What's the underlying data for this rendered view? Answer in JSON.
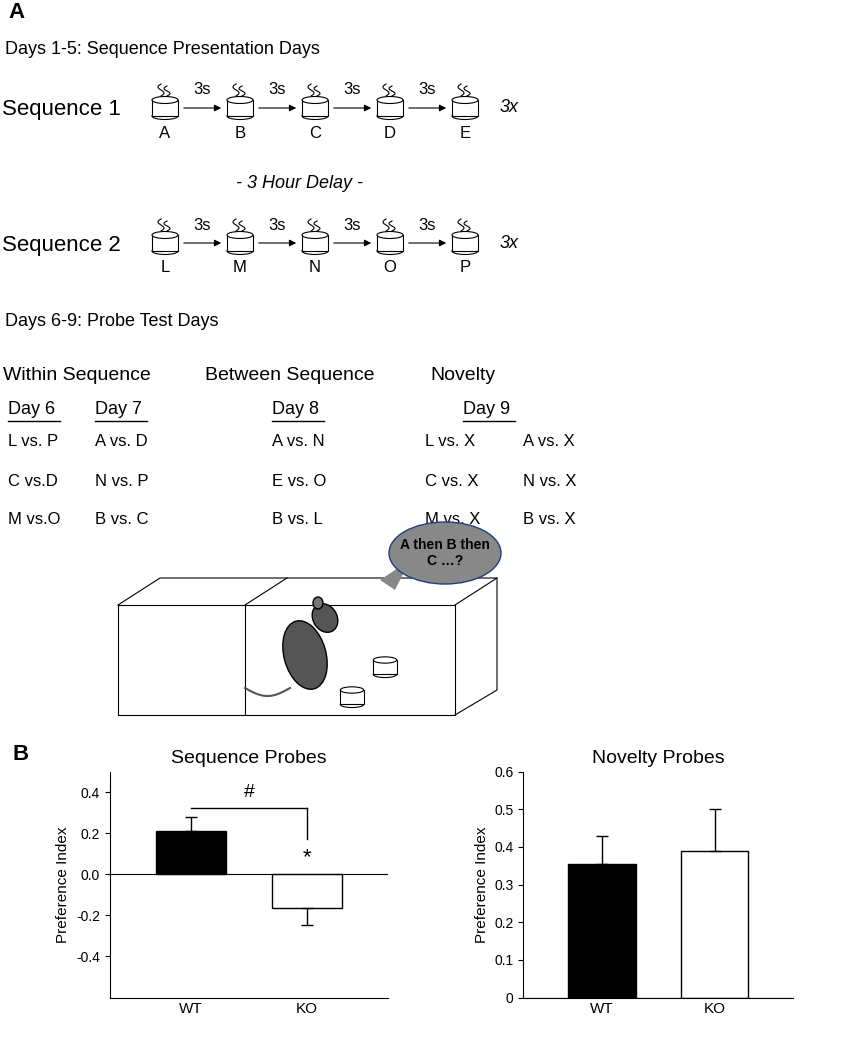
{
  "panel_a": {
    "label": "A",
    "presentation_title": "Days 1-5: Sequence Presentation Days",
    "sequences": [
      {
        "name": "Sequence 1",
        "odors": [
          "A",
          "B",
          "C",
          "D",
          "E"
        ]
      },
      {
        "name": "Sequence 2",
        "odors": [
          "L",
          "M",
          "N",
          "O",
          "P"
        ]
      }
    ],
    "interval_label": "3s",
    "repeat_label": "3x",
    "delay_label": "- 3 Hour Delay -",
    "probe_title": "Days 6-9: Probe Test Days",
    "probe_groups": [
      {
        "name": "Within Sequence",
        "days": [
          {
            "day": "Day 6",
            "pairs": [
              "L vs. P",
              "C vs.D",
              "M vs.O"
            ]
          },
          {
            "day": "Day 7",
            "pairs": [
              "A vs. D",
              "N vs. P",
              "B vs. C"
            ]
          }
        ]
      },
      {
        "name": "Between Sequence",
        "days": [
          {
            "day": "Day 8",
            "pairs": [
              "A vs. N",
              "E vs. O",
              "B vs. L"
            ]
          }
        ]
      },
      {
        "name": "Novelty",
        "days": [
          {
            "day": "Day 9",
            "pairs": [
              "L vs. X",
              "C vs. X",
              "M vs. X",
              "A vs. X",
              "N vs. X",
              "B vs. X"
            ]
          }
        ]
      }
    ],
    "speech": "A then B then C …?"
  },
  "panel_b": {
    "label": "B"
  },
  "chart_data": [
    {
      "type": "bar",
      "title": "Sequence Probes",
      "y_label": "Preference Index",
      "categories": [
        "WT",
        "KO"
      ],
      "values": [
        0.21,
        -0.165
      ],
      "errors": [
        0.07,
        0.08
      ],
      "colors": [
        "#000000",
        "#ffffff"
      ],
      "ylim": [
        -0.6,
        0.5
      ],
      "yticks": [
        -0.4,
        -0.2,
        0.0,
        0.2,
        0.4
      ],
      "annotations": [
        "#",
        "*"
      ]
    },
    {
      "type": "bar",
      "title": "Novelty Probes",
      "y_label": "Preference Index",
      "categories": [
        "WT",
        "KO"
      ],
      "values": [
        0.355,
        0.39
      ],
      "errors": [
        0.075,
        0.11
      ],
      "colors": [
        "#000000",
        "#ffffff"
      ],
      "ylim": [
        0,
        0.6
      ],
      "yticks": [
        0,
        0.1,
        0.2,
        0.3,
        0.4,
        0.5,
        0.6
      ]
    }
  ]
}
